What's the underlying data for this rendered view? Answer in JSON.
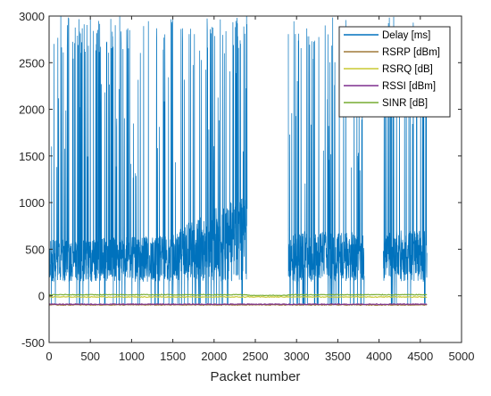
{
  "chart_data": {
    "type": "line",
    "xlabel": "Packet number",
    "ylabel": "",
    "xlim": [
      0,
      5000
    ],
    "ylim": [
      -500,
      3000
    ],
    "x_ticks": [
      "0",
      "500",
      "1000",
      "1500",
      "2000",
      "2500",
      "3000",
      "3500",
      "4000",
      "4500",
      "5000"
    ],
    "y_ticks": [
      "-500",
      "0",
      "500",
      "1000",
      "1500",
      "2000",
      "2500",
      "3000"
    ],
    "grid": false,
    "legend_position": "top-right",
    "series": [
      {
        "name": "Delay [ms]",
        "color": "#0072bd",
        "segments": [
          [
            0,
            2400
          ],
          [
            2900,
            3820
          ],
          [
            4050,
            4580
          ]
        ],
        "baseline_low": 150,
        "baseline_high": 700,
        "spike_max": 3000,
        "drift": [
          [
            0,
            600
          ],
          [
            1500,
            650
          ],
          [
            1700,
            800
          ],
          [
            2380,
            1100
          ]
        ]
      },
      {
        "name": "RSRP [dBm]",
        "color": "#a07a3a",
        "approx_value": -97,
        "x_range": [
          0,
          4580
        ]
      },
      {
        "name": "RSRQ [dB]",
        "color": "#c8c832",
        "approx_value": -12,
        "x_range": [
          0,
          4580
        ]
      },
      {
        "name": "RSSI [dBm]",
        "color": "#7e2f8e",
        "approx_value": -90,
        "x_range": [
          0,
          4580
        ]
      },
      {
        "name": "SINR [dB]",
        "color": "#77ac30",
        "approx_value": 12,
        "x_range": [
          0,
          4580
        ]
      }
    ]
  }
}
